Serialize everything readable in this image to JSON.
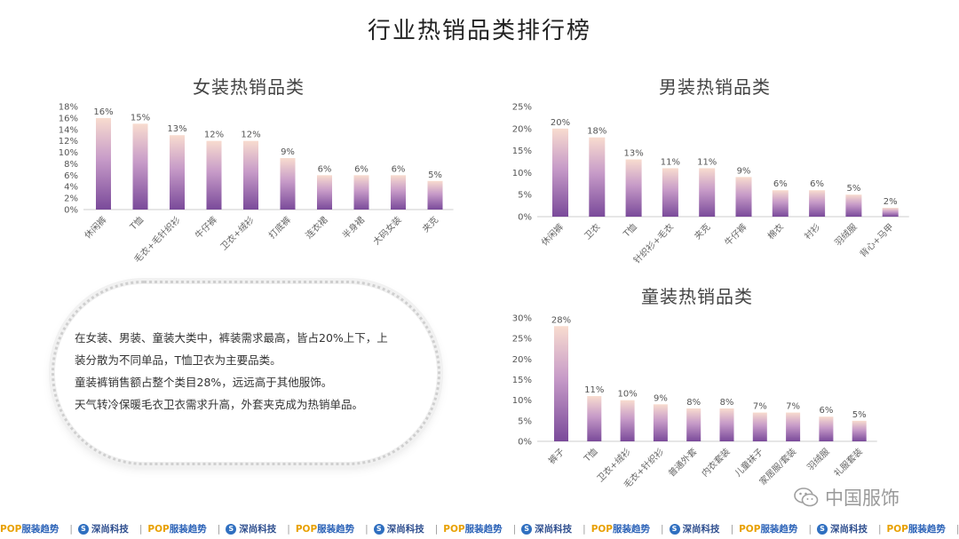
{
  "title": "行业热销品类排行榜",
  "note": {
    "lines": [
      "在女装、男装、童装大类中，裤装需求最高，皆占20%上下，上",
      "装分散为不同单品，T恤卫衣为主要品类。",
      "童装裤销售额占整个类目28%，远远高于其他服饰。",
      "天气转冷保暖毛衣卫衣需求升高，外套夹克成为热销单品。"
    ]
  },
  "watermark": {
    "text": "中国服饰",
    "icon": "wechat-icon"
  },
  "footer": {
    "pop_a": "POP",
    "pop_b": "服装趋势",
    "sk": "深尚科技",
    "sk_icon": "S",
    "sep": "|"
  },
  "colors": {
    "bar_top": "#f8dccf",
    "bar_mid": "#c79bc8",
    "bar_bottom": "#7a4a9a",
    "axis": "#cccccc"
  },
  "chart_data": [
    {
      "type": "bar",
      "title": "女装热销品类",
      "categories": [
        "休闲裤",
        "T恤",
        "毛衣+毛针织衫",
        "牛仔裤",
        "卫衣+绒衫",
        "打底裤",
        "连衣裙",
        "半身裙",
        "大码女装",
        "夹克"
      ],
      "values": [
        16,
        15,
        13,
        12,
        12,
        9,
        6,
        6,
        6,
        5
      ],
      "value_labels": [
        "16%",
        "15%",
        "13%",
        "12%",
        "12%",
        "9%",
        "6%",
        "6%",
        "6%",
        "5%"
      ],
      "y_ticks": [
        "0%",
        "2%",
        "4%",
        "6%",
        "8%",
        "10%",
        "12%",
        "14%",
        "16%",
        "18%"
      ],
      "ylim": [
        0,
        18
      ],
      "grid": false
    },
    {
      "type": "bar",
      "title": "男装热销品类",
      "categories": [
        "休闲裤",
        "卫衣",
        "T恤",
        "针织衫+毛衣",
        "夹克",
        "牛仔裤",
        "棉衣",
        "衬衫",
        "羽绒服",
        "背心+马甲"
      ],
      "values": [
        20,
        18,
        13,
        11,
        11,
        9,
        6,
        6,
        5,
        2
      ],
      "value_labels": [
        "20%",
        "18%",
        "13%",
        "11%",
        "11%",
        "9%",
        "6%",
        "6%",
        "5%",
        "2%"
      ],
      "y_ticks": [
        "0%",
        "5%",
        "10%",
        "15%",
        "20%",
        "25%"
      ],
      "ylim": [
        0,
        25
      ],
      "grid": false
    },
    {
      "type": "bar",
      "title": "童装热销品类",
      "categories": [
        "裤子",
        "T恤",
        "卫衣+绒衫",
        "毛衣+针织衫",
        "普通外套",
        "内衣套装",
        "儿童袜子",
        "家居服/套装",
        "羽绒服",
        "礼服套装"
      ],
      "values": [
        28,
        11,
        10,
        9,
        8,
        8,
        7,
        7,
        6,
        5
      ],
      "value_labels": [
        "28%",
        "11%",
        "10%",
        "9%",
        "8%",
        "8%",
        "7%",
        "7%",
        "6%",
        "5%"
      ],
      "y_ticks": [
        "0%",
        "5%",
        "10%",
        "15%",
        "20%",
        "25%",
        "30%"
      ],
      "ylim": [
        0,
        30
      ],
      "grid": false
    }
  ]
}
